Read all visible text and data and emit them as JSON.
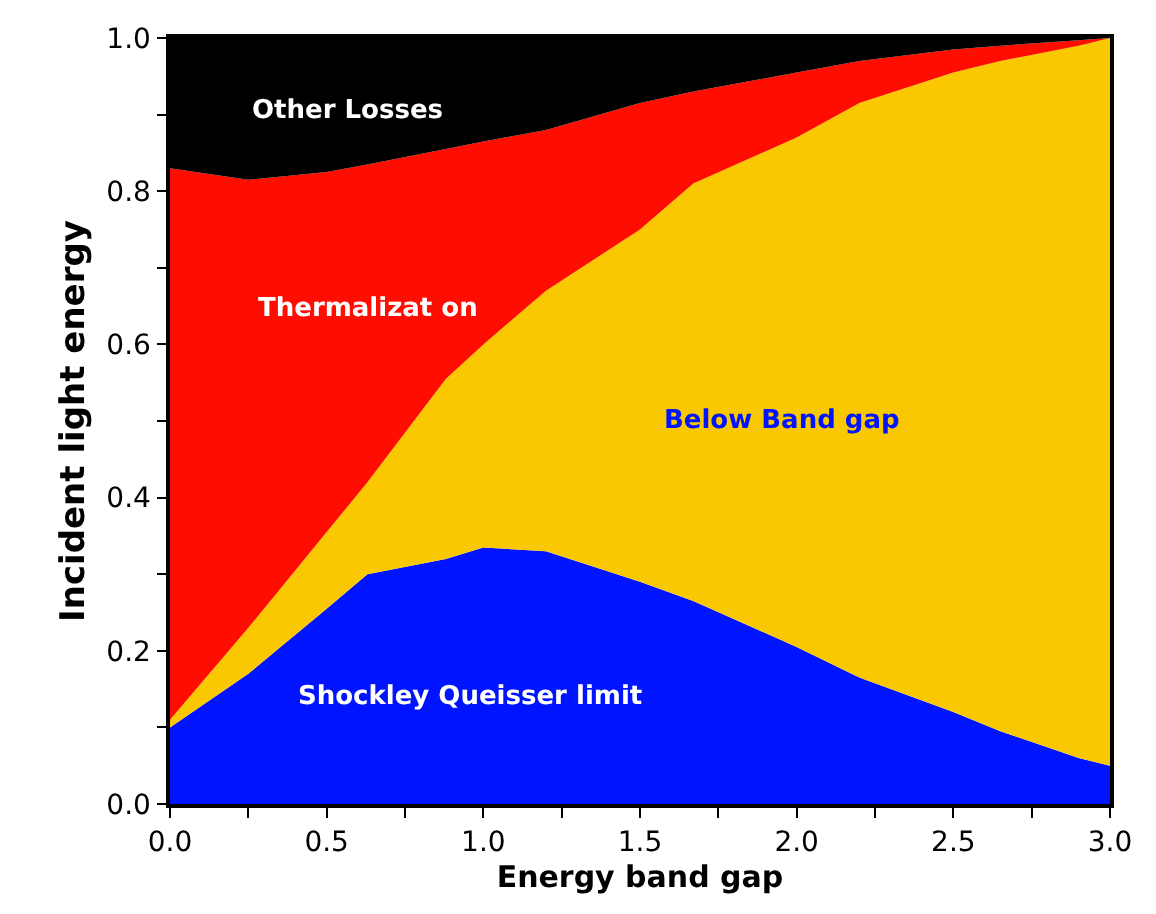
{
  "chart_data": {
    "type": "area",
    "stacked": true,
    "xlabel": "Energy band gap",
    "ylabel": "Incident light energy",
    "x": [
      0,
      0.25,
      0.5,
      0.63,
      0.88,
      1.0,
      1.2,
      1.5,
      1.67,
      2.0,
      2.2,
      2.5,
      2.65,
      2.9,
      3.0
    ],
    "series": [
      {
        "name": "Shockley Queisser limit",
        "color": "#0014ff",
        "values": [
          0.1,
          0.17,
          0.255,
          0.3,
          0.32,
          0.335,
          0.33,
          0.29,
          0.265,
          0.205,
          0.165,
          0.12,
          0.095,
          0.06,
          0.05
        ]
      },
      {
        "name": "Below Band gap",
        "color": "#fac800",
        "values": [
          0.01,
          0.06,
          0.1,
          0.12,
          0.235,
          0.265,
          0.34,
          0.46,
          0.545,
          0.665,
          0.75,
          0.835,
          0.875,
          0.93,
          0.95
        ]
      },
      {
        "name": "Thermalizat on",
        "color": "#fe0d00",
        "values": [
          0.72,
          0.585,
          0.47,
          0.415,
          0.3,
          0.265,
          0.21,
          0.165,
          0.12,
          0.085,
          0.055,
          0.03,
          0.02,
          0.007,
          0.0
        ]
      },
      {
        "name": "Other Losses",
        "color": "#000000",
        "values": [
          0.17,
          0.185,
          0.175,
          0.165,
          0.145,
          0.135,
          0.12,
          0.085,
          0.07,
          0.045,
          0.03,
          0.015,
          0.01,
          0.003,
          0.0
        ]
      }
    ],
    "xlim": [
      0,
      3
    ],
    "ylim": [
      0,
      1
    ],
    "xticks": [
      {
        "value": 0,
        "label": "0.0"
      },
      {
        "value": 0.25,
        "label": null
      },
      {
        "value": 0.5,
        "label": "0.5"
      },
      {
        "value": 0.75,
        "label": null
      },
      {
        "value": 1,
        "label": "1.0"
      },
      {
        "value": 1.25,
        "label": null
      },
      {
        "value": 1.5,
        "label": "1.5"
      },
      {
        "value": 1.75,
        "label": null
      },
      {
        "value": 2,
        "label": "2.0"
      },
      {
        "value": 2.25,
        "label": null
      },
      {
        "value": 2.5,
        "label": "2.5"
      },
      {
        "value": 2.75,
        "label": null
      },
      {
        "value": 3,
        "label": "3.0"
      }
    ],
    "yticks": [
      {
        "value": 0,
        "label": "0.0"
      },
      {
        "value": 0.1,
        "label": null
      },
      {
        "value": 0.2,
        "label": "0.2"
      },
      {
        "value": 0.3,
        "label": null
      },
      {
        "value": 0.4,
        "label": "0.4"
      },
      {
        "value": 0.5,
        "label": null
      },
      {
        "value": 0.6,
        "label": "0.6"
      },
      {
        "value": 0.7,
        "label": null
      },
      {
        "value": 0.8,
        "label": "0.8"
      },
      {
        "value": 0.9,
        "label": null
      },
      {
        "value": 1,
        "label": "1.0"
      }
    ],
    "legend": false
  }
}
